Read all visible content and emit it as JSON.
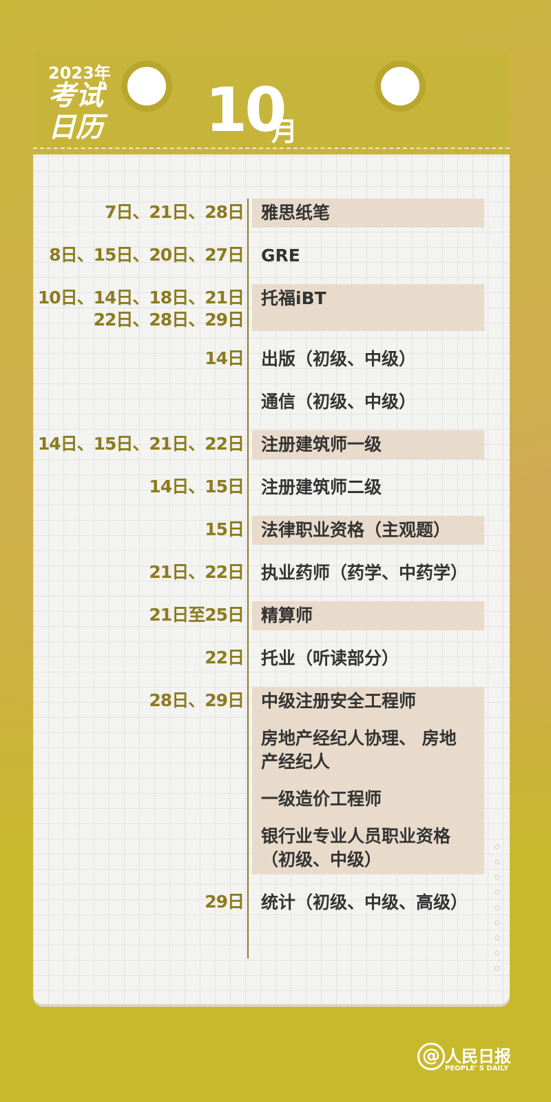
{
  "header": {
    "year": "2023年",
    "title_lines": [
      "考试",
      "日历"
    ],
    "month": "10",
    "month_unit": "月"
  },
  "rows": [
    {
      "dates": [
        "7日、21日、28日"
      ],
      "exams": [
        [
          "雅思纸笔"
        ]
      ],
      "highlight": true
    },
    {
      "dates": [
        "8日、15日、20日、27日"
      ],
      "exams": [
        [
          "GRE"
        ]
      ],
      "highlight": false
    },
    {
      "dates": [
        "10日、14日、18日、21日",
        "22日、28日、29日"
      ],
      "exams": [
        [
          "托福iBT"
        ]
      ],
      "highlight": true
    },
    {
      "dates": [
        "14日"
      ],
      "exams": [
        [
          "出版（初级、中级）"
        ]
      ],
      "highlight": false
    },
    {
      "dates": [],
      "exams": [
        [
          "通信（初级、中级）"
        ]
      ],
      "highlight": false
    },
    {
      "dates": [
        "14日、15日、21日、22日"
      ],
      "exams": [
        [
          "注册建筑师一级"
        ]
      ],
      "highlight": true
    },
    {
      "dates": [
        "14日、15日"
      ],
      "exams": [
        [
          "注册建筑师二级"
        ]
      ],
      "highlight": false
    },
    {
      "dates": [
        "15日"
      ],
      "exams": [
        [
          "法律职业资格（主观题）"
        ]
      ],
      "highlight": true
    },
    {
      "dates": [
        "21日、22日"
      ],
      "exams": [
        [
          "执业药师（药学、中药学）"
        ]
      ],
      "highlight": false
    },
    {
      "dates": [
        "21日至25日"
      ],
      "exams": [
        [
          "精算师"
        ]
      ],
      "highlight": true
    },
    {
      "dates": [
        "22日"
      ],
      "exams": [
        [
          "托业（听读部分）"
        ]
      ],
      "highlight": false
    },
    {
      "dates": [
        "28日、29日"
      ],
      "exams": [
        [
          "中级注册安全工程师"
        ],
        [
          "房地产经纪人协理、 房地",
          "产经纪人"
        ],
        [
          "一级造价工程师"
        ],
        [
          "银行业专业人员职业资格",
          "（初级、中级）"
        ]
      ],
      "highlight": true
    },
    {
      "dates": [
        "29日"
      ],
      "exams": [
        [
          "统计（初级、中级、高级）"
        ]
      ],
      "highlight": false
    }
  ],
  "footer": {
    "brand": "人民日报",
    "brand_en": "PEOPLE' S DAILY"
  }
}
